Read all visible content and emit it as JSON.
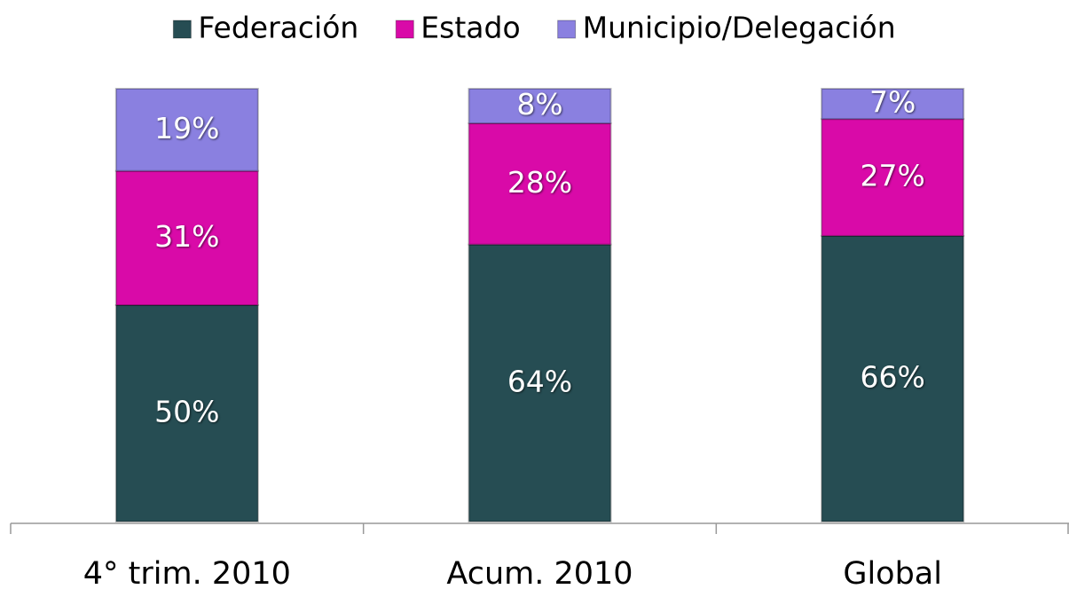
{
  "chart_data": {
    "type": "stacked_bar",
    "categories": [
      "4° trim. 2010",
      "Acum. 2010",
      "Global"
    ],
    "series": [
      {
        "name": "Federación",
        "color": "#264d53",
        "values": [
          50,
          64,
          66
        ],
        "value_labels": [
          "50%",
          "64%",
          "66%"
        ]
      },
      {
        "name": "Estado",
        "color": "#d90aa8",
        "values": [
          31,
          28,
          27
        ],
        "value_labels": [
          "31%",
          "28%",
          "27%"
        ]
      },
      {
        "name": "Municipio/Delegación",
        "color": "#8a80e0",
        "values": [
          19,
          8,
          7
        ],
        "value_labels": [
          "19%",
          "8%",
          "7%"
        ]
      }
    ],
    "ylim": [
      0,
      100
    ],
    "legend": "top"
  }
}
